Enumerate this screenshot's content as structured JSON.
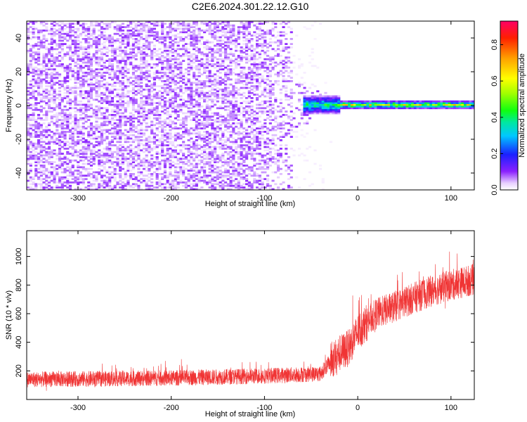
{
  "figure": {
    "title": "C2E6.2024.301.22.12.G10"
  },
  "chart_data": [
    {
      "type": "heatmap",
      "xlabel": "Height of straight line (km)",
      "ylabel": "Frequency (Hz)",
      "xlim": [
        -355,
        125
      ],
      "ylim": [
        -50,
        50
      ],
      "xticks": [
        -300,
        -200,
        -100,
        0,
        100
      ],
      "yticks": [
        -40,
        -20,
        0,
        20,
        40
      ],
      "grid": false,
      "colorbar": {
        "label": "Normalized spectral amplitude",
        "range": [
          0,
          0.93
        ],
        "ticks": [
          "0.0",
          "0.2",
          "0.4",
          "0.6",
          "0.8"
        ],
        "tick_values": [
          0.0,
          0.2,
          0.4,
          0.6,
          0.8
        ],
        "colormap": "rainbow (white-violet-blue-cyan-green-yellow-red)"
      },
      "features": {
        "noise_region_x": [
          -355,
          -25
        ],
        "noise_typical_amplitude": 0.05,
        "carrier_x": [
          -60,
          125
        ],
        "carrier_frequency": 0,
        "carrier_amplitude": 0.6
      }
    },
    {
      "type": "line",
      "xlabel": "Height of straight line (km)",
      "ylabel": "SNR (10 * v/v)",
      "xlim": [
        -355,
        125
      ],
      "ylim": [
        0,
        1180
      ],
      "xticks": [
        -300,
        -200,
        -100,
        0,
        100
      ],
      "yticks": [
        200,
        400,
        600,
        800,
        1000
      ],
      "grid": false,
      "color": "#f03434",
      "series_profile": {
        "x": [
          -355,
          -200,
          -100,
          -40,
          -30,
          -20,
          -10,
          0,
          10,
          20,
          40,
          60,
          80,
          100,
          125
        ],
        "y": [
          140,
          150,
          165,
          180,
          260,
          320,
          360,
          470,
          540,
          600,
          650,
          710,
          760,
          800,
          840
        ]
      }
    }
  ]
}
